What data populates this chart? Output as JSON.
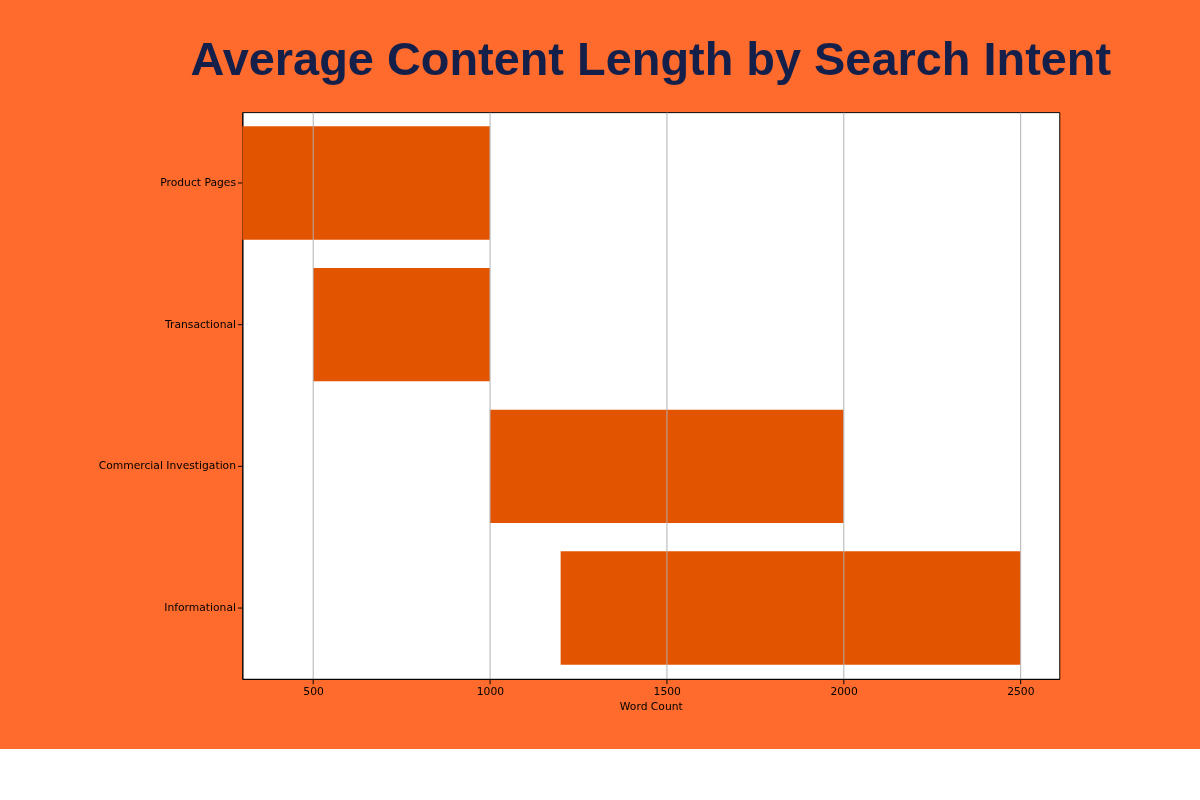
{
  "chart_data": {
    "type": "bar",
    "orientation": "horizontal",
    "title": "Average Content Length by Search Intent",
    "xlabel": "Word Count",
    "categories": [
      "Product Pages",
      "Transactional",
      "Commercial Investigation",
      "Informational"
    ],
    "base": [
      300,
      500,
      1000,
      1200
    ],
    "values": [
      700,
      500,
      1000,
      1300
    ],
    "color": "#e35400",
    "xlim": [
      300,
      2610
    ],
    "xticks": [
      500,
      1000,
      1500,
      2000,
      2500
    ],
    "grid": "x"
  }
}
